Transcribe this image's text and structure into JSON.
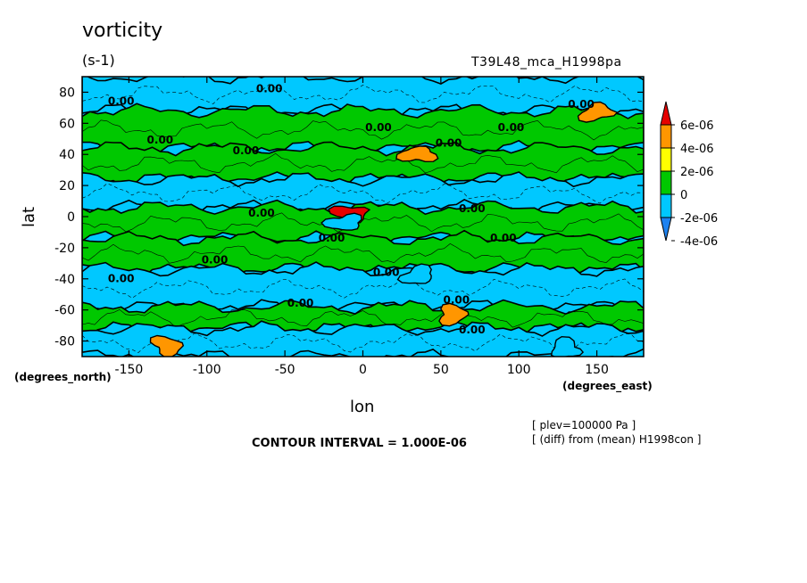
{
  "chart_data": {
    "type": "heatmap",
    "title": "vorticity",
    "units": "(s-1)",
    "run_label": "T39L48_mca_H1998pa",
    "xlabel": "lon",
    "xlabel_unit": "(degrees_east)",
    "ylabel": "lat",
    "ylabel_unit": "(degrees_north)",
    "xlim": [
      -180,
      180
    ],
    "ylim": [
      -90,
      90
    ],
    "xticks": [
      -150,
      -100,
      -50,
      0,
      50,
      100,
      150
    ],
    "yticks": [
      -80,
      -60,
      -40,
      -20,
      0,
      20,
      40,
      60,
      80
    ],
    "xtick_labels": [
      "-150",
      "-100",
      "-50",
      "0",
      "50",
      "100",
      "150"
    ],
    "ytick_labels": [
      "-80",
      "-60",
      "-40",
      "-20",
      "0",
      "20",
      "40",
      "60",
      "80"
    ],
    "colorbar": {
      "levels": [
        -4e-06,
        -2e-06,
        0,
        2e-06,
        4e-06,
        6e-06
      ],
      "labels": [
        "-4e-06",
        "-2e-06",
        "0",
        "2e-06",
        "4e-06",
        "6e-06"
      ],
      "colors": [
        "#1e82f0",
        "#00c8ff",
        "#00c800",
        "#ffff00",
        "#ff9600",
        "#e60000"
      ],
      "below_color": "#1e82f0",
      "above_color": "#e60000"
    },
    "contour_labels": [
      "0.00"
    ],
    "bands": [
      {
        "lat_from": 68,
        "lat_to": 90,
        "sign": "neg"
      },
      {
        "lat_from": 44,
        "lat_to": 68,
        "sign": "pos"
      },
      {
        "lat_from": 24,
        "lat_to": 44,
        "sign": "pos"
      },
      {
        "lat_from": 6,
        "lat_to": 24,
        "sign": "neg"
      },
      {
        "lat_from": -14,
        "lat_to": 6,
        "sign": "pos"
      },
      {
        "lat_from": -34,
        "lat_to": -14,
        "sign": "pos"
      },
      {
        "lat_from": -58,
        "lat_to": -34,
        "sign": "neg"
      },
      {
        "lat_from": -72,
        "lat_to": -58,
        "sign": "pos"
      },
      {
        "lat_from": -90,
        "lat_to": -72,
        "sign": "neg"
      }
    ],
    "features": [
      {
        "lon": 35,
        "lat": 40,
        "value": 3e-06
      },
      {
        "lon": 150,
        "lat": 67,
        "value": 3e-06
      },
      {
        "lon": 58,
        "lat": -63,
        "value": 3e-06
      },
      {
        "lon": -125,
        "lat": -83,
        "value": 3e-06
      },
      {
        "lon": -8,
        "lat": 2,
        "value": 5e-06
      },
      {
        "lon": -12,
        "lat": -4,
        "value": -4e-06
      },
      {
        "lon": 35,
        "lat": -38,
        "value": -3e-06
      },
      {
        "lon": 130,
        "lat": -85,
        "value": -3e-06
      }
    ],
    "contour_interval_text": "CONTOUR INTERVAL = 1.000E-06",
    "annotation_plev": "[ plev=100000 Pa ]",
    "annotation_diff": "[ (diff) from (mean) H1998con ]"
  }
}
